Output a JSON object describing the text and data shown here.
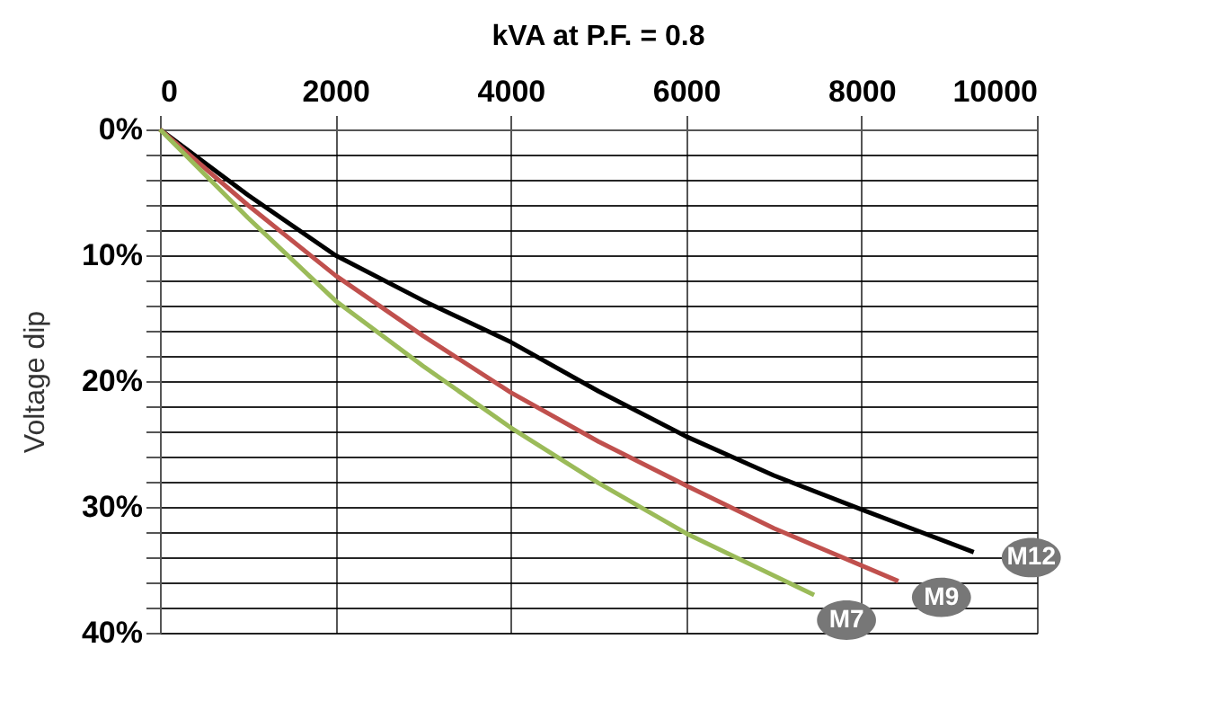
{
  "chart_data": {
    "type": "line",
    "title": "kVA at P.F. = 0.8",
    "ylabel": "Voltage dip",
    "xlim": [
      0,
      10000
    ],
    "xticks": [
      0,
      2000,
      4000,
      6000,
      8000,
      10000
    ],
    "ylim": [
      40,
      0
    ],
    "yticks": [
      {
        "value": 0,
        "label": "0%"
      },
      {
        "value": 2,
        "label": null
      },
      {
        "value": 4,
        "label": null
      },
      {
        "value": 6,
        "label": null
      },
      {
        "value": 8,
        "label": null
      },
      {
        "value": 10,
        "label": "10%"
      },
      {
        "value": 12,
        "label": null
      },
      {
        "value": 14,
        "label": null
      },
      {
        "value": 16,
        "label": null
      },
      {
        "value": 18,
        "label": null
      },
      {
        "value": 20,
        "label": "20%"
      },
      {
        "value": 22,
        "label": null
      },
      {
        "value": 24,
        "label": null
      },
      {
        "value": 26,
        "label": null
      },
      {
        "value": 28,
        "label": null
      },
      {
        "value": 30,
        "label": "30%"
      },
      {
        "value": 32,
        "label": null
      },
      {
        "value": 34,
        "label": null
      },
      {
        "value": 36,
        "label": null
      },
      {
        "value": 38,
        "label": null
      },
      {
        "value": 40,
        "label": "40%"
      }
    ],
    "grid": true,
    "legend": false,
    "marker": "none",
    "line_style": "solid",
    "series": [
      {
        "name": "M12",
        "color": "#000000",
        "x": [
          0,
          1000,
          2000,
          3000,
          4000,
          5000,
          6000,
          7000,
          8000,
          9280
        ],
        "values": [
          0,
          5.2,
          10,
          13.6,
          16.9,
          20.8,
          24.4,
          27.5,
          30.2,
          33.6
        ]
      },
      {
        "name": "M9",
        "color": "#c0504d",
        "x": [
          0,
          1000,
          2000,
          3000,
          4000,
          5000,
          6000,
          7000,
          8420
        ],
        "values": [
          0,
          6,
          11.6,
          16.4,
          20.9,
          24.8,
          28.3,
          31.7,
          35.9
        ]
      },
      {
        "name": "M7",
        "color": "#9bbb59",
        "x": [
          0,
          1000,
          2000,
          3000,
          4000,
          5000,
          6000,
          7460
        ],
        "values": [
          0,
          7,
          13.6,
          18.8,
          23.7,
          28.1,
          32.1,
          37
        ]
      }
    ]
  }
}
